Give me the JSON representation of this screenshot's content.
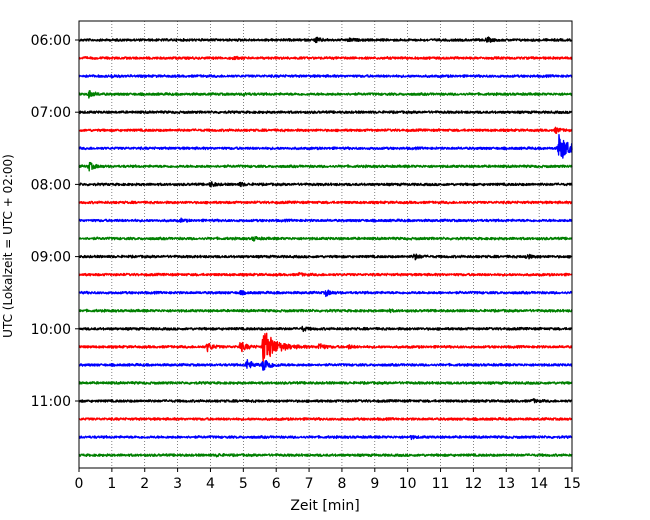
{
  "chart_data": {
    "type": "line",
    "subtype": "helicorder",
    "xlabel": "Zeit  [min]",
    "ylabel": "UTC (Lokalzeit = UTC + 02:00)",
    "xlim": [
      0,
      15
    ],
    "x_ticks": [
      "0",
      "1",
      "2",
      "3",
      "4",
      "5",
      "6",
      "7",
      "8",
      "9",
      "10",
      "11",
      "12",
      "13",
      "14",
      "15"
    ],
    "y_ticks": [
      "06:00",
      "07:00",
      "08:00",
      "09:00",
      "10:00",
      "11:00"
    ],
    "vertical_grid": true,
    "grid_style": "dotted",
    "trace_interval_min": 15,
    "color_cycle": [
      "#000000",
      "#ff0000",
      "#0000ff",
      "#008000"
    ],
    "traces": [
      {
        "start": "06:00",
        "events": [
          {
            "t": 7.2,
            "amp": 0.3
          },
          {
            "t": 8.2,
            "amp": 0.2
          },
          {
            "t": 12.4,
            "amp": 0.3
          }
        ]
      },
      {
        "start": "06:15",
        "events": [
          {
            "t": 4.7,
            "amp": 0.15
          }
        ]
      },
      {
        "start": "06:30",
        "events": [
          {
            "t": 1.0,
            "amp": 0.15
          }
        ]
      },
      {
        "start": "06:45",
        "events": [
          {
            "t": 0.3,
            "amp": 0.4
          },
          {
            "t": 5.0,
            "amp": 0.15
          }
        ]
      },
      {
        "start": "07:00",
        "events": []
      },
      {
        "start": "07:15",
        "events": [
          {
            "t": 14.5,
            "amp": 0.3
          }
        ]
      },
      {
        "start": "07:30",
        "events": [
          {
            "t": 14.6,
            "amp": 1.6
          }
        ]
      },
      {
        "start": "07:45",
        "events": [
          {
            "t": 0.3,
            "amp": 0.45
          }
        ]
      },
      {
        "start": "08:00",
        "events": [
          {
            "t": 4.0,
            "amp": 0.3
          },
          {
            "t": 4.9,
            "amp": 0.2
          }
        ]
      },
      {
        "start": "08:15",
        "events": []
      },
      {
        "start": "08:30",
        "events": [
          {
            "t": 3.1,
            "amp": 0.15
          }
        ]
      },
      {
        "start": "08:45",
        "events": [
          {
            "t": 5.3,
            "amp": 0.25
          }
        ]
      },
      {
        "start": "09:00",
        "events": [
          {
            "t": 10.2,
            "amp": 0.35
          },
          {
            "t": 13.6,
            "amp": 0.3
          }
        ]
      },
      {
        "start": "09:15",
        "events": [
          {
            "t": 6.7,
            "amp": 0.15
          }
        ]
      },
      {
        "start": "09:30",
        "events": [
          {
            "t": 4.9,
            "amp": 0.2
          },
          {
            "t": 7.5,
            "amp": 0.35
          }
        ]
      },
      {
        "start": "09:45",
        "events": [
          {
            "t": 9.4,
            "amp": 0.15
          }
        ]
      },
      {
        "start": "10:00",
        "events": [
          {
            "t": 6.8,
            "amp": 0.25
          }
        ]
      },
      {
        "start": "10:15",
        "events": [
          {
            "t": 3.9,
            "amp": 0.5
          },
          {
            "t": 4.9,
            "amp": 0.6
          },
          {
            "t": 5.6,
            "amp": 2.0
          },
          {
            "t": 7.3,
            "amp": 0.4
          },
          {
            "t": 8.2,
            "amp": 0.2
          }
        ]
      },
      {
        "start": "10:30",
        "events": [
          {
            "t": 5.1,
            "amp": 0.6
          },
          {
            "t": 5.6,
            "amp": 0.8
          }
        ]
      },
      {
        "start": "10:45",
        "events": []
      },
      {
        "start": "11:00",
        "events": [
          {
            "t": 13.8,
            "amp": 0.2
          }
        ]
      },
      {
        "start": "11:15",
        "events": []
      },
      {
        "start": "11:30",
        "events": [
          {
            "t": 10.1,
            "amp": 0.15
          }
        ]
      },
      {
        "start": "11:45",
        "events": [
          {
            "t": 4.2,
            "amp": 0.15
          }
        ]
      }
    ]
  }
}
